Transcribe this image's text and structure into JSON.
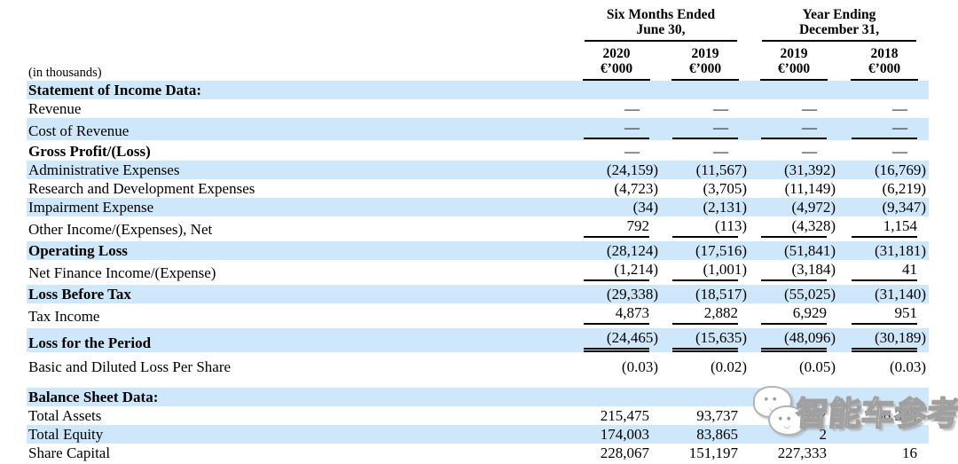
{
  "meta": {
    "units_note": "(in thousands)"
  },
  "header": {
    "group1": {
      "line1": "Six Months Ended",
      "line2": "June 30,"
    },
    "group2": {
      "line1": "Year Ending",
      "line2": "December 31,"
    },
    "columns": [
      {
        "year": "2020",
        "unit": "€’000"
      },
      {
        "year": "2019",
        "unit": "€’000"
      },
      {
        "year": "2019",
        "unit": "€’000"
      },
      {
        "year": "2018",
        "unit": "€’000"
      }
    ]
  },
  "rows": [
    {
      "label": "Statement of Income Data:",
      "values": [
        "",
        "",
        "",
        ""
      ]
    },
    {
      "label": "Revenue",
      "values": [
        "—",
        "—",
        "—",
        "—"
      ]
    },
    {
      "label": "Cost of Revenue",
      "values": [
        "—",
        "—",
        "—",
        "—"
      ]
    },
    {
      "label": "Gross Profit/(Loss)",
      "values": [
        "—",
        "—",
        "—",
        "—"
      ]
    },
    {
      "label": "Administrative Expenses",
      "values": [
        "(24,159)",
        "(11,567)",
        "(31,392)",
        "(16,769)"
      ]
    },
    {
      "label": "Research and Development Expenses",
      "values": [
        "(4,723)",
        "(3,705)",
        "(11,149)",
        "(6,219)"
      ]
    },
    {
      "label": "Impairment Expense",
      "values": [
        "(34)",
        "(2,131)",
        "(4,972)",
        "(9,347)"
      ]
    },
    {
      "label": "Other Income/(Expenses), Net",
      "values": [
        "792",
        "(113)",
        "(4,328)",
        "1,154"
      ]
    },
    {
      "label": "Operating Loss",
      "values": [
        "(28,124)",
        "(17,516)",
        "(51,841)",
        "(31,181)"
      ]
    },
    {
      "label": "Net Finance Income/(Expense)",
      "values": [
        "(1,214)",
        "(1,001)",
        "(3,184)",
        "41"
      ]
    },
    {
      "label": "Loss Before Tax",
      "values": [
        "(29,338)",
        "(18,517)",
        "(55,025)",
        "(31,140)"
      ]
    },
    {
      "label": "Tax Income",
      "values": [
        "4,873",
        "2,882",
        "6,929",
        "951"
      ]
    },
    {
      "label": "Loss for the Period",
      "values": [
        "(24,465)",
        "(15,635)",
        "(48,096)",
        "(30,189)"
      ]
    },
    {
      "label": "Basic and Diluted Loss Per Share",
      "values": [
        "(0.03)",
        "(0.02)",
        "(0.05)",
        "(0.03)"
      ]
    },
    {
      "label": "Balance Sheet Data:",
      "values": [
        "",
        "",
        "",
        ""
      ]
    },
    {
      "label": "Total Assets",
      "values": [
        "215,475",
        "93,737",
        "243,167",
        "56,324"
      ]
    },
    {
      "label": "Total Equity",
      "values": [
        "174,003",
        "83,865",
        "2",
        ""
      ]
    },
    {
      "label": "Share Capital",
      "values": [
        "228,067",
        "151,197",
        "227,333",
        "16"
      ]
    }
  ],
  "watermark": {
    "text": "智能车参考"
  },
  "colors": {
    "row_highlight": "#cfe7fa",
    "text": "#000000",
    "rule_line": "#000000",
    "watermark_fill": "#ffffff",
    "watermark_outline": "#a0a0a0"
  }
}
